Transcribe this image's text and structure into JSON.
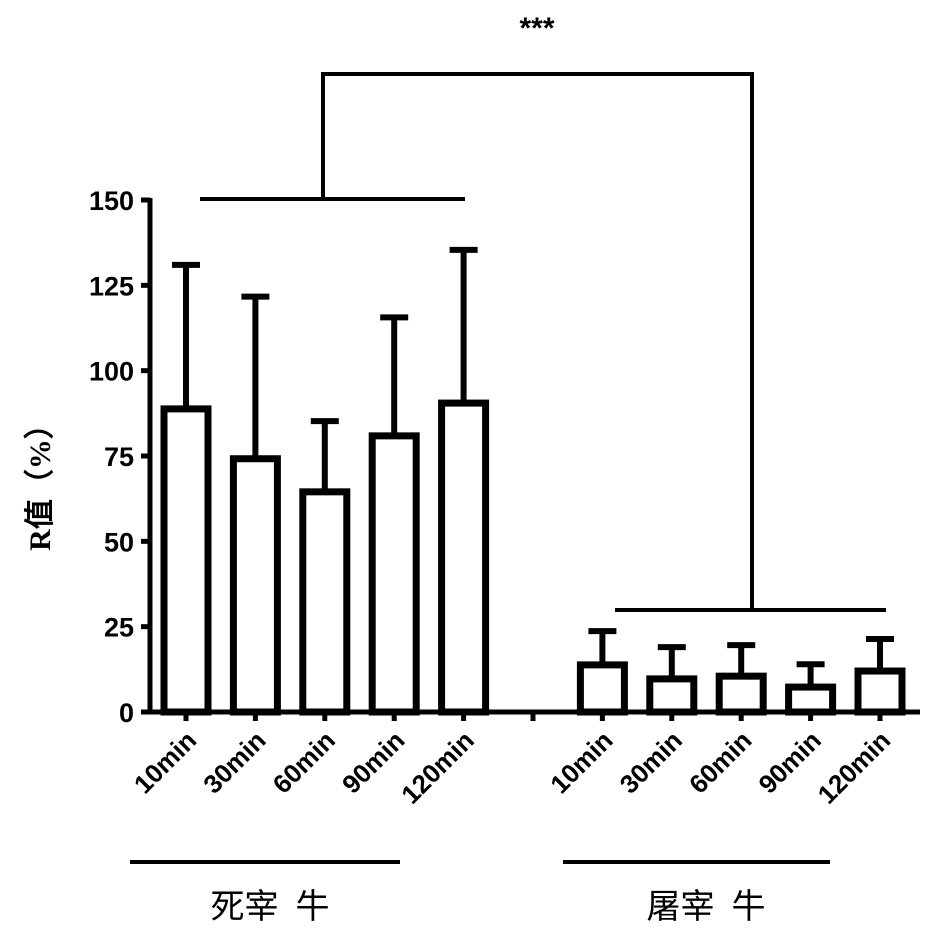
{
  "chart_data": {
    "type": "bar",
    "title": "",
    "xlabel": "",
    "ylabel": "R值（%）",
    "ylim": [
      0,
      150
    ],
    "yticks": [
      0,
      25,
      50,
      75,
      100,
      125,
      150
    ],
    "grid": false,
    "categories": [
      "10min",
      "30min",
      "60min",
      "90min",
      "120min",
      "10min",
      "30min",
      "60min",
      "90min",
      "120min"
    ],
    "groups": [
      {
        "label": "死宰  牛",
        "categories": [
          "10min",
          "30min",
          "60min",
          "90min",
          "120min"
        ],
        "values": [
          88.8,
          74.2,
          64.5,
          80.9,
          90.5
        ],
        "error_upper": [
          131,
          121.7,
          85.2,
          115.6,
          135.4
        ]
      },
      {
        "label": "屠宰  牛",
        "categories": [
          "10min",
          "30min",
          "60min",
          "90min",
          "120min"
        ],
        "values": [
          13.8,
          9.7,
          10.5,
          7.3,
          12
        ],
        "error_upper": [
          23.7,
          19,
          19.6,
          14,
          21.4
        ]
      }
    ],
    "annotation": "***",
    "bar_style": {
      "fill": "#ffffff",
      "stroke": "#000000"
    }
  }
}
